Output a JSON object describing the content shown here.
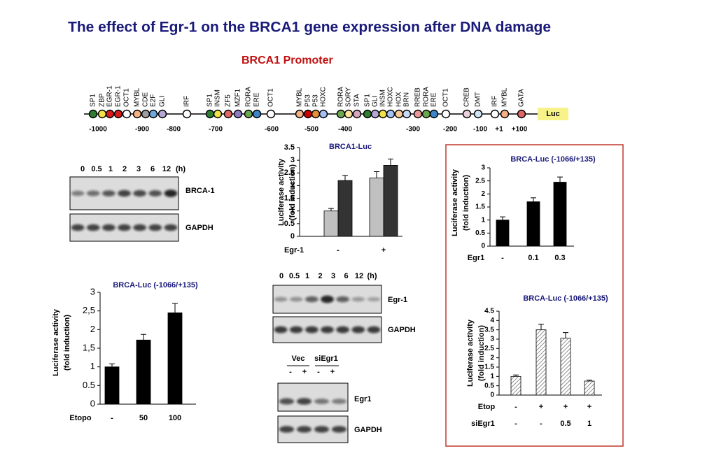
{
  "header": {
    "title": "The effect of Egr-1 on the BRCA1 gene expression after DNA damage"
  },
  "promoter": {
    "title": "BRCA1 Promoter",
    "elements": [
      {
        "label": "SP1",
        "fill": "#2e7d32"
      },
      {
        "label": "ZBP",
        "fill": "#f2e24a"
      },
      {
        "label": "EGR-1",
        "fill": "#d81b1b",
        "label_color": "#c01010"
      },
      {
        "label": "EGR-1",
        "fill": "#d81b1b",
        "label_color": "#c01010"
      },
      {
        "label": "OCT1",
        "fill": "#ffffff"
      },
      {
        "label": "MYBL",
        "fill": "#f4b183"
      },
      {
        "label": "CDE",
        "fill": "#9e9e9e"
      },
      {
        "label": "E2F",
        "fill": "#6fa8dc"
      },
      {
        "label": "GLI",
        "fill": "#b4a7d6"
      },
      {
        "label": "IRF",
        "fill": "#ffffff"
      },
      {
        "label": "SP1",
        "fill": "#2e7d32"
      },
      {
        "label": "INSM",
        "fill": "#f2e24a"
      },
      {
        "label": "ZF5",
        "fill": "#e06666"
      },
      {
        "label": "MZF1",
        "fill": "#8e7cc3"
      },
      {
        "label": "RORA",
        "fill": "#6aa84f"
      },
      {
        "label": "ERE",
        "fill": "#3d85c6",
        "label_color": "#14a0a0"
      },
      {
        "label": "OCT1",
        "fill": "#ffffff"
      },
      {
        "label": "MYBL",
        "fill": "#f4b183"
      },
      {
        "label": "P53",
        "fill": "#cc0000"
      },
      {
        "label": "P53",
        "fill": "#e69138"
      },
      {
        "label": "HOXC",
        "fill": "#a4c2f4"
      },
      {
        "label": "RORA",
        "fill": "#6aa84f"
      },
      {
        "label": "SORY",
        "fill": "#ffe599"
      },
      {
        "label": "STA",
        "fill": "#d5a6bd"
      },
      {
        "label": "SP1",
        "fill": "#2e7d32"
      },
      {
        "label": "GLI",
        "fill": "#b4a7d6"
      },
      {
        "label": "INSM",
        "fill": "#f2e24a"
      },
      {
        "label": "HOXC",
        "fill": "#a4c2f4"
      },
      {
        "label": "HOX",
        "fill": "#f9cb9c"
      },
      {
        "label": "BRN",
        "fill": "#c9daf8"
      },
      {
        "label": "RREB",
        "fill": "#ea9999"
      },
      {
        "label": "RORA",
        "fill": "#6aa84f"
      },
      {
        "label": "ERE",
        "fill": "#3d85c6",
        "label_color": "#14a0a0"
      },
      {
        "label": "OCT1",
        "fill": "#ffffff"
      },
      {
        "label": "CREB",
        "fill": "#ead1dc"
      },
      {
        "label": "DMT",
        "fill": "#cfe2f3"
      },
      {
        "label": "IRF",
        "fill": "#ffffff"
      },
      {
        "label": "MYBL",
        "fill": "#f4b183"
      },
      {
        "label": "GATA",
        "fill": "#e06666"
      }
    ],
    "reporter": "Luc",
    "scale_labels": [
      "-1000",
      "-900",
      "-800",
      "-700",
      "-600",
      "-500",
      "-400",
      "-300",
      "-200",
      "-100",
      "+1",
      "+100"
    ]
  },
  "blot_a": {
    "times": [
      "0",
      "0.5",
      "1",
      "2",
      "3",
      "6",
      "12",
      "(h)"
    ],
    "rows": [
      "BRCA-1",
      "GAPDH"
    ]
  },
  "blot_b": {
    "times": [
      "0",
      "0.5",
      "1",
      "2",
      "3",
      "6",
      "12",
      "(h)"
    ],
    "rows": [
      "Egr-1",
      "GAPDH"
    ]
  },
  "blot_c": {
    "groups": [
      "Vec",
      "siEgr1"
    ],
    "lanes": [
      "-",
      "+",
      "-",
      "+"
    ],
    "rows": [
      "Egr1",
      "GAPDH"
    ]
  },
  "chart_data": [
    {
      "type": "bar",
      "title": "BRCA1-Luc",
      "y_label": [
        "Luciferase activity",
        "(fold induction)"
      ],
      "x_label": "Egr-1",
      "categories": [
        "-",
        "+"
      ],
      "series": [
        {
          "color": "#c0c0c0",
          "values": [
            1.0,
            2.3
          ],
          "errors": [
            0.1,
            0.25
          ]
        },
        {
          "color": "#333333",
          "values": [
            2.2,
            2.8
          ],
          "errors": [
            0.2,
            0.25
          ]
        }
      ],
      "ylim": [
        0,
        3.5
      ],
      "yticks": [
        0,
        0.5,
        1,
        1.5,
        2,
        2.5,
        3,
        3.5
      ]
    },
    {
      "type": "bar",
      "title": "BRCA-Luc (-1066/+135)",
      "y_label": [
        "Luciferase activity",
        "(fold induction)"
      ],
      "x_label": "Etopo",
      "categories": [
        "-",
        "50",
        "100"
      ],
      "series": [
        {
          "color": "#000000",
          "values": [
            1.0,
            1.72,
            2.45
          ],
          "errors": [
            0.08,
            0.15,
            0.25
          ]
        }
      ],
      "ylim": [
        0,
        3
      ],
      "yticks": [
        0,
        0.5,
        1,
        {
          "value": 1.5,
          "label": "1,5"
        },
        2,
        {
          "value": 2.5,
          "label": "2,5"
        },
        3
      ]
    },
    {
      "type": "bar",
      "title": "BRCA-Luc (-1066/+135)",
      "y_label": [
        "Luciferase activity",
        "(fold induction)"
      ],
      "x_label": "Egr1",
      "categories": [
        "-",
        "0.1",
        "0.3"
      ],
      "series": [
        {
          "color": "#000000",
          "values": [
            1.0,
            1.7,
            2.45
          ],
          "errors": [
            0.12,
            0.15,
            0.2
          ]
        }
      ],
      "ylim": [
        0,
        3
      ],
      "yticks": [
        0,
        0.5,
        1,
        1.5,
        2,
        2.5,
        3
      ]
    },
    {
      "type": "bar",
      "title": "BRCA-Luc (-1066/+135)",
      "y_label": [
        "Luciferase activity",
        "(fold induction)"
      ],
      "x_label": "Etop",
      "categories": [
        "-",
        "+",
        "+",
        "+"
      ],
      "x_rows": [
        {
          "label": "siEgr1",
          "labels": [
            "-",
            "-",
            "0.5",
            "1"
          ]
        }
      ],
      "series": [
        {
          "color": "hatch",
          "values": [
            1.0,
            3.5,
            3.05,
            0.75
          ],
          "errors": [
            0.08,
            0.3,
            0.3,
            0.05
          ]
        }
      ],
      "ylim": [
        0,
        4.5
      ],
      "yticks": [
        0,
        0.5,
        1,
        1.5,
        2,
        2.5,
        3,
        3.5,
        4,
        4.5
      ]
    }
  ]
}
